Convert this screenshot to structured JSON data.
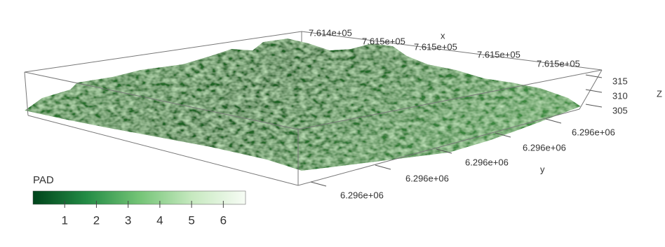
{
  "plot": {
    "x_label": "x",
    "x_ticks": [
      "7.614e+05",
      "7.615e+05",
      "7.615e+05",
      "7.615e+05",
      "7.615e+05"
    ],
    "y_label": "y",
    "y_ticks": [
      "6.296e+06",
      "6.296e+06",
      "6.296e+06",
      "6.296e+06",
      "6.296e+06"
    ],
    "z_label": "Z",
    "z_ticks": [
      315,
      310,
      305
    ],
    "colorbar": {
      "title": "PAD",
      "lim": [
        0,
        6.7
      ],
      "ticks": [
        1,
        2,
        3,
        4,
        5,
        6
      ],
      "colors": [
        "#00441b",
        "#238b45",
        "#74c476",
        "#c7e9c0",
        "#f7fcf5"
      ]
    }
  }
}
